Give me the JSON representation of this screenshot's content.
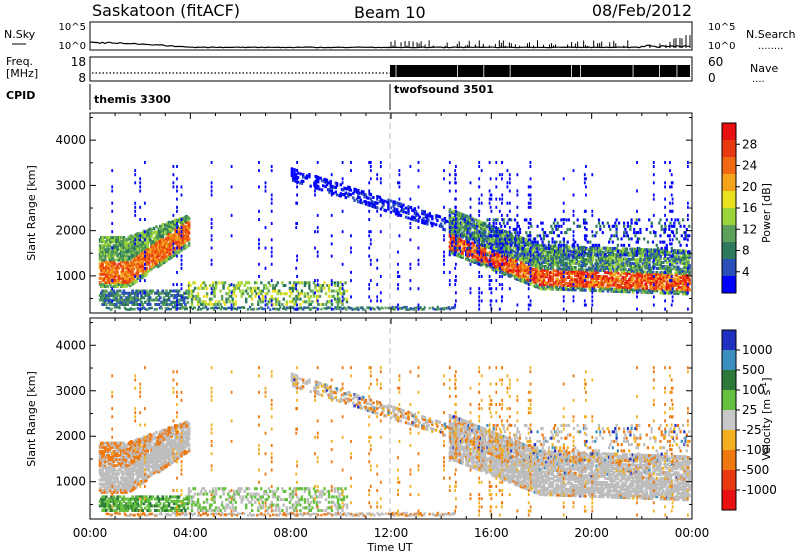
{
  "header": {
    "station": "Saskatoon (fitACF)",
    "beam": "Beam 10",
    "date": "08/Feb/2012"
  },
  "params": {
    "nsky_label": "N.Sky",
    "nsky_ticks": [
      "10^5",
      "10^0"
    ],
    "nsearch_label": "N.Search",
    "nsearch_ticks": [
      "10^5",
      "10^0"
    ],
    "freq_label_1": "Freq.",
    "freq_label_2": "[MHz]",
    "freq_ticks": [
      "18",
      "8"
    ],
    "nave_label": "Nave",
    "nave_ticks": [
      "60",
      "0"
    ],
    "cpid_label": "CPID",
    "cpid_segments": [
      {
        "name": "themis 3300",
        "start_hour": 0
      },
      {
        "name": "twofsound 3501",
        "start_hour": 12
      }
    ]
  },
  "chart_data": [
    {
      "type": "heatmap",
      "title": "",
      "xlabel": "Time UT",
      "ylabel": "Slant Range [km]",
      "xlim": [
        0,
        24
      ],
      "ylim": [
        180,
        4600
      ],
      "x_ticks": [
        "00:00",
        "04:00",
        "08:00",
        "12:00",
        "16:00",
        "20:00",
        "00:00"
      ],
      "y_ticks": [
        "1000",
        "2000",
        "3000",
        "4000"
      ],
      "colorbar": {
        "label": "Power [dB]",
        "range": [
          0,
          32
        ],
        "tick_labels": [
          "4",
          "8",
          "12",
          "16",
          "20",
          "24",
          "28"
        ],
        "colors": [
          "#0000ff",
          "#2a4fb8",
          "#2c7a5b",
          "#5aa05a",
          "#9bd43a",
          "#e8e020",
          "#f3a41a",
          "#ef6a12",
          "#e83a10",
          "#e81010"
        ]
      },
      "features": [
        {
          "name": "early echo band",
          "t_start": 0.4,
          "t_end": 3.8,
          "range_start_km": 1000,
          "range_end_km": 2000,
          "peak": "20-28 dB"
        },
        {
          "name": "late echo band",
          "t_start": 14.5,
          "t_end": 23.8,
          "range_start_km": 800,
          "range_end_km": 1600,
          "peak": "24-32 dB"
        }
      ]
    },
    {
      "type": "heatmap",
      "title": "",
      "xlabel": "Time UT",
      "ylabel": "Slant Range [km]",
      "xlim": [
        0,
        24
      ],
      "ylim": [
        180,
        4600
      ],
      "x_ticks": [
        "00:00",
        "04:00",
        "08:00",
        "12:00",
        "16:00",
        "20:00",
        "00:00"
      ],
      "y_ticks": [
        "1000",
        "2000",
        "3000",
        "4000"
      ],
      "colorbar": {
        "label": "Velocity [m s^-1]",
        "tick_labels": [
          "1000",
          "500",
          "100",
          "25",
          "-25",
          "-100",
          "-500",
          "-1000"
        ],
        "colors": [
          "#2030c0",
          "#3b8fbf",
          "#2c7a3a",
          "#66c040",
          "#c8c8c8",
          "#f2b020",
          "#ef7810",
          "#e83a10",
          "#e81010"
        ]
      }
    }
  ],
  "colors": {
    "axis": "#000000",
    "ground_scatter": "#bdbdbd"
  }
}
